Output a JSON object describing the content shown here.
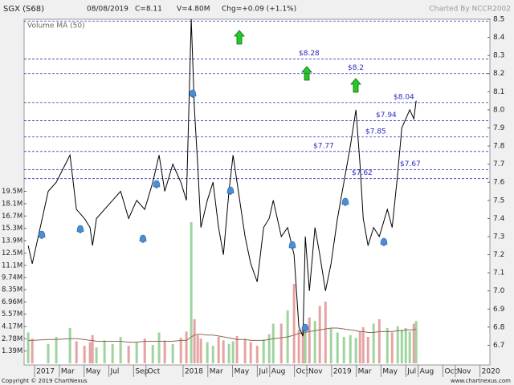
{
  "chart_data": {
    "type": "line",
    "title": "SGX (S68)",
    "header": [
      "08/08/2019",
      "C=8.11",
      "V=4.80M",
      "Chg=+0.09 (+1.1%)"
    ],
    "credit": "Charted By NCCR2002",
    "copyright": "Copyright © 2019 ChartNexus",
    "website": "www.chartnexus.com",
    "x": [
      -0.52,
      -0.19,
      1.1,
      1.75,
      2.86,
      3.38,
      4.03,
      4.48,
      4.68,
      5.0,
      5.65,
      6.3,
      6.95,
      7.6,
      8.25,
      8.9,
      9.55,
      10.06,
      10.52,
      11.17,
      11.82,
      12.27,
      12.66,
      12.92,
      13.18,
      13.44,
      13.96,
      14.42,
      14.87,
      15.26,
      15.71,
      16.04,
      16.36,
      17.01,
      17.47,
      17.99,
      18.51,
      18.96,
      19.29,
      19.94,
      20.45,
      20.97,
      21.36,
      21.69,
      21.88,
      22.21,
      22.66,
      23.05,
      23.51,
      23.96,
      24.48,
      25.0,
      25.52,
      25.97,
      26.3,
      26.56,
      26.95,
      27.4,
      27.86,
      28.51,
      28.9,
      29.35,
      29.68,
      30.0,
      30.32,
      30.65,
      30.84
    ],
    "series": [
      {
        "color": "#000000",
        "values": [
          7.25,
          7.15,
          7.55,
          7.6,
          7.75,
          7.45,
          7.4,
          7.35,
          7.25,
          7.4,
          7.45,
          7.5,
          7.55,
          7.4,
          7.5,
          7.45,
          7.6,
          7.75,
          7.55,
          7.7,
          7.6,
          7.5,
          8.5,
          8.0,
          7.7,
          7.35,
          7.5,
          7.6,
          7.35,
          7.2,
          7.55,
          7.75,
          7.6,
          7.3,
          7.15,
          7.05,
          7.35,
          7.4,
          7.5,
          7.3,
          7.35,
          7.2,
          6.8,
          6.75,
          7.3,
          7.0,
          7.35,
          7.2,
          7.0,
          7.15,
          7.4,
          7.6,
          7.8,
          8.0,
          7.7,
          7.4,
          7.25,
          7.35,
          7.3,
          7.45,
          7.35,
          7.65,
          7.9,
          7.95,
          8.0,
          7.95,
          8.05
        ]
      },
      {
        "type": "bar",
        "axis": "y2",
        "values": [
          3.5,
          2.8,
          2.2,
          3.0,
          4.0,
          2.5,
          2.0,
          2.4,
          3.2,
          1.8,
          2.6,
          2.2,
          3.0,
          2.0,
          2.4,
          2.8,
          2.1,
          3.5,
          2.6,
          2.2,
          2.9,
          3.6,
          16.0,
          5.0,
          3.2,
          2.8,
          2.4,
          2.0,
          3.0,
          2.6,
          2.2,
          2.5,
          3.1,
          2.8,
          2.4,
          2.0,
          2.7,
          3.3,
          4.5,
          4.5,
          6.0,
          9.0,
          3.8,
          4.2,
          3.5,
          5.2,
          4.8,
          6.5,
          7.0,
          4.0,
          3.5,
          3.0,
          3.2,
          2.9,
          3.6,
          4.1,
          3.0,
          4.5,
          5.0,
          4.0,
          3.5,
          4.2,
          3.8,
          4.0,
          3.6,
          4.5,
          4.8
        ]
      },
      {
        "name": "Volume MA (50)",
        "color": "#8a6a50",
        "axis": "y2",
        "values": [
          2.6,
          2.6,
          2.7,
          2.7,
          2.8,
          2.8,
          2.7,
          2.6,
          2.6,
          2.5,
          2.5,
          2.5,
          2.5,
          2.4,
          2.4,
          2.5,
          2.5,
          2.5,
          2.5,
          2.5,
          2.6,
          2.6,
          3.0,
          3.2,
          3.3,
          3.3,
          3.2,
          3.2,
          3.1,
          3.0,
          2.9,
          2.8,
          2.7,
          2.7,
          2.6,
          2.6,
          2.6,
          2.7,
          2.8,
          2.9,
          3.0,
          3.2,
          3.4,
          3.4,
          3.5,
          3.6,
          3.7,
          3.8,
          3.9,
          4.0,
          4.0,
          3.9,
          3.8,
          3.7,
          3.6,
          3.6,
          3.5,
          3.5,
          3.6,
          3.6,
          3.6,
          3.7,
          3.7,
          3.8,
          3.8,
          3.8,
          3.9
        ]
      }
    ],
    "levels": [
      {
        "value": 8.49,
        "label": null
      },
      {
        "value": 8.28,
        "label": "$8.28"
      },
      {
        "value": 8.2,
        "label": "$8.2"
      },
      {
        "value": 8.04,
        "label": "$8.04"
      },
      {
        "value": 7.94,
        "label": "$7.94"
      },
      {
        "value": 7.85,
        "label": "$7.85"
      },
      {
        "value": 7.77,
        "label": "$7.77"
      },
      {
        "value": 7.67,
        "label": "$7.67"
      },
      {
        "value": 7.62,
        "label": "$7.62"
      }
    ],
    "xlim": [
      -0.85,
      36.8
    ],
    "xticks": [
      {
        "value": 0,
        "label": "2017"
      },
      {
        "value": 2,
        "label": "Mar"
      },
      {
        "value": 4,
        "label": "May"
      },
      {
        "value": 6,
        "label": "Jul"
      },
      {
        "value": 8,
        "label": "Sep"
      },
      {
        "value": 9,
        "label": "Oct"
      },
      {
        "value": 12,
        "label": "2018"
      },
      {
        "value": 14,
        "label": "Mar"
      },
      {
        "value": 16,
        "label": "May"
      },
      {
        "value": 18,
        "label": "Jul"
      },
      {
        "value": 19,
        "label": "Aug"
      },
      {
        "value": 21,
        "label": "Oct"
      },
      {
        "value": 22,
        "label": "Nov"
      },
      {
        "value": 24,
        "label": "2019"
      },
      {
        "value": 26,
        "label": "Mar"
      },
      {
        "value": 28,
        "label": "May"
      },
      {
        "value": 30,
        "label": "Jul"
      },
      {
        "value": 31,
        "label": "Aug"
      },
      {
        "value": 33,
        "label": "Oct"
      },
      {
        "value": 34,
        "label": "Nov"
      },
      {
        "value": 36,
        "label": "2020"
      }
    ],
    "ylim": [
      6.6,
      8.5
    ],
    "yticks": [
      6.7,
      6.8,
      6.9,
      {
        "value": 7,
        "label": "7.0"
      },
      7.1,
      7.2,
      7.3,
      7.4,
      7.5,
      7.6,
      7.7,
      7.8,
      7.9,
      {
        "value": 8,
        "label": "8.0"
      },
      8.1,
      8.2,
      8.3,
      8.4,
      8.5
    ],
    "y2lim": [
      0,
      39
    ],
    "y2ticks": [
      {
        "value": 1.39,
        "label": "1.39M"
      },
      {
        "value": 2.78,
        "label": "2.78M"
      },
      {
        "value": 4.17,
        "label": "4.17M"
      },
      {
        "value": 5.57,
        "label": "5.57M"
      },
      {
        "value": 6.96,
        "label": "6.96M"
      },
      {
        "value": 8.35,
        "label": "8.35M"
      },
      {
        "value": 9.74,
        "label": "9.74M"
      },
      {
        "value": 11.1,
        "label": "11.1M"
      },
      {
        "value": 12.5,
        "label": "12.5M"
      },
      {
        "value": 13.9,
        "label": "13.9M"
      },
      {
        "value": 15.3,
        "label": "15.3M"
      },
      {
        "value": 16.7,
        "label": "16.7M"
      },
      {
        "value": 18.1,
        "label": "18.1M"
      },
      {
        "value": 19.5,
        "label": "19.5M"
      }
    ],
    "grid": true
  }
}
